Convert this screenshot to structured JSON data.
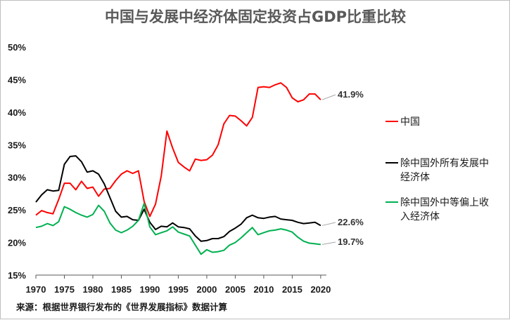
{
  "chart_data": {
    "type": "line",
    "title": "中国与发展中经济体固定投资占GDP比重比较",
    "source": "来源：根据世界银行发布的《世界发展指标》数据计算",
    "xlabel": "",
    "ylabel": "",
    "xlim": [
      1970,
      2021
    ],
    "ylim": [
      15,
      50
    ],
    "x_ticks": [
      "1970",
      "1975",
      "1980",
      "1985",
      "1990",
      "1995",
      "2000",
      "2005",
      "2010",
      "2015",
      "2020"
    ],
    "y_ticks": [
      "15%",
      "20%",
      "25%",
      "30%",
      "35%",
      "40%",
      "45%",
      "50%"
    ],
    "grid": false,
    "legend_position": "right",
    "x": [
      1970,
      1971,
      1972,
      1973,
      1974,
      1975,
      1976,
      1977,
      1978,
      1979,
      1980,
      1981,
      1982,
      1983,
      1984,
      1985,
      1986,
      1987,
      1988,
      1989,
      1990,
      1991,
      1992,
      1993,
      1994,
      1995,
      1996,
      1997,
      1998,
      1999,
      2000,
      2001,
      2002,
      2003,
      2004,
      2005,
      2006,
      2007,
      2008,
      2009,
      2010,
      2011,
      2012,
      2013,
      2014,
      2015,
      2016,
      2017,
      2018,
      2019,
      2020
    ],
    "series": [
      {
        "name": "中国",
        "color": "#ff0000",
        "end_label": "41.9%",
        "values": [
          24.2,
          24.9,
          24.6,
          24.4,
          26.6,
          29.1,
          29.1,
          28.1,
          29.4,
          28.3,
          28.5,
          27.1,
          28.2,
          28.3,
          29.5,
          30.5,
          31.0,
          30.6,
          31.0,
          26.3,
          24.0,
          25.9,
          30.2,
          37.1,
          34.5,
          32.3,
          31.6,
          31.0,
          32.8,
          32.6,
          32.7,
          33.4,
          35.0,
          38.2,
          39.5,
          39.4,
          38.7,
          37.9,
          39.2,
          43.8,
          43.9,
          43.8,
          44.2,
          44.5,
          43.8,
          42.2,
          41.6,
          41.9,
          42.8,
          42.8,
          41.9
        ]
      },
      {
        "name": "除中国外所有发展中经济体",
        "color": "#000000",
        "end_label": "22.6%",
        "values": [
          26.2,
          27.3,
          28.1,
          27.9,
          28.0,
          32.0,
          33.2,
          33.3,
          32.4,
          30.8,
          31.0,
          30.5,
          29.0,
          26.9,
          24.8,
          23.9,
          24.0,
          23.5,
          23.4,
          25.1,
          23.1,
          22.0,
          22.5,
          22.4,
          23.0,
          22.4,
          22.3,
          22.1,
          21.0,
          20.2,
          20.3,
          20.6,
          20.6,
          20.9,
          21.7,
          22.2,
          22.8,
          23.8,
          24.2,
          23.8,
          23.7,
          23.9,
          24.0,
          23.6,
          23.5,
          23.4,
          23.1,
          22.9,
          23.0,
          23.1,
          22.6
        ]
      },
      {
        "name": "除中国外中等偏上收入经济体",
        "color": "#00b050",
        "end_label": "19.7%",
        "values": [
          22.3,
          22.5,
          22.9,
          22.6,
          23.2,
          25.5,
          25.1,
          24.6,
          24.2,
          23.9,
          24.3,
          25.7,
          24.8,
          23.0,
          21.9,
          21.5,
          21.9,
          22.5,
          23.4,
          26.0,
          22.4,
          21.2,
          21.5,
          21.8,
          22.4,
          21.6,
          21.3,
          21.0,
          19.6,
          18.2,
          18.9,
          18.5,
          18.6,
          18.8,
          19.6,
          20.0,
          20.7,
          21.5,
          22.3,
          21.2,
          21.5,
          21.8,
          21.9,
          22.1,
          21.9,
          21.6,
          20.8,
          20.2,
          19.9,
          19.8,
          19.7
        ]
      }
    ]
  }
}
